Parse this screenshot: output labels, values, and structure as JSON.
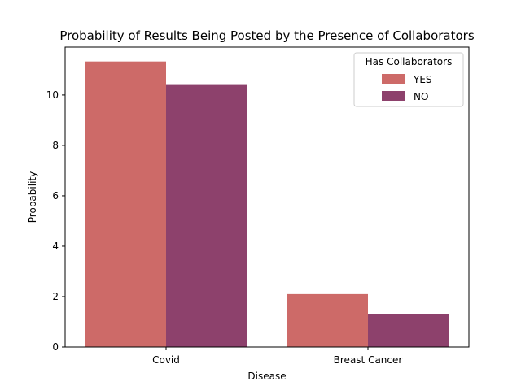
{
  "chart_data": {
    "type": "bar",
    "title": "Probability of Results Being Posted by the Presence of Collaborators",
    "xlabel": "Disease",
    "ylabel": "Probability",
    "categories": [
      "Covid",
      "Breast Cancer"
    ],
    "series": [
      {
        "name": "YES",
        "color": "#cd6a68",
        "values": [
          11.33,
          2.1
        ]
      },
      {
        "name": "NO",
        "color": "#8d416c",
        "values": [
          10.43,
          1.3
        ]
      }
    ],
    "ylim": [
      0,
      11.9
    ],
    "yticks": [
      0,
      2,
      4,
      6,
      8,
      10
    ],
    "legend": {
      "title": "Has Collaborators",
      "placement": "top-right"
    },
    "grid": false
  }
}
